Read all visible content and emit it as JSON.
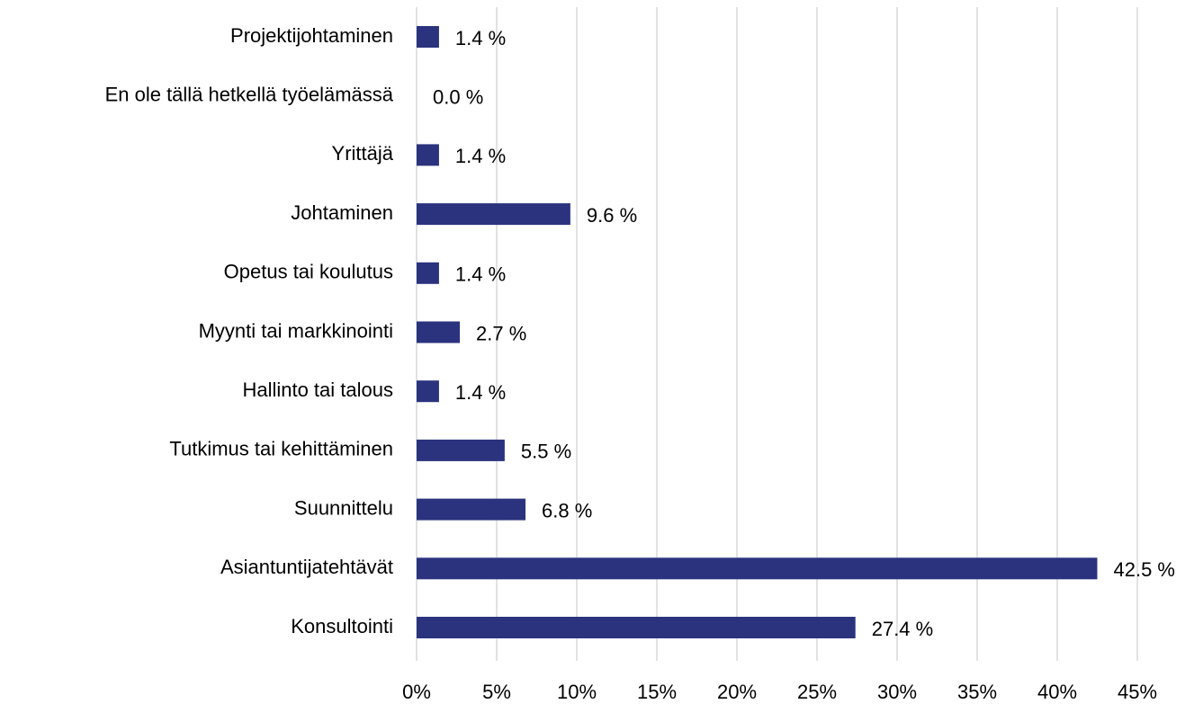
{
  "chart_data": {
    "type": "hbar",
    "categories": [
      "Projektijohtaminen",
      "En ole tällä hetkellä työelämässä",
      "Yrittäjä",
      "Johtaminen",
      "Opetus tai koulutus",
      "Myynti tai markkinointi",
      "Hallinto tai talous",
      "Tutkimus tai kehittäminen",
      "Suunnittelu",
      "Asiantuntijatehtävät",
      "Konsultointi"
    ],
    "values": [
      1.4,
      0.0,
      1.4,
      9.6,
      1.4,
      2.7,
      1.4,
      5.5,
      6.8,
      42.5,
      27.4
    ],
    "value_labels": [
      "1.4 %",
      "0.0 %",
      "1.4 %",
      "9.6 %",
      "1.4 %",
      "2.7 %",
      "1.4 %",
      "5.5 %",
      "6.8 %",
      "42.5 %",
      "27.4 %"
    ],
    "color": "#2b337e",
    "xlim": [
      0,
      45
    ],
    "xticks": [
      {
        "value": 0,
        "label": "0%"
      },
      {
        "value": 5,
        "label": "5%"
      },
      {
        "value": 10,
        "label": "10%"
      },
      {
        "value": 15,
        "label": "15%"
      },
      {
        "value": 20,
        "label": "20%"
      },
      {
        "value": 25,
        "label": "25%"
      },
      {
        "value": 30,
        "label": "30%"
      },
      {
        "value": 35,
        "label": "35%"
      },
      {
        "value": 40,
        "label": "40%"
      },
      {
        "value": 45,
        "label": "45%"
      }
    ],
    "grid": true
  }
}
